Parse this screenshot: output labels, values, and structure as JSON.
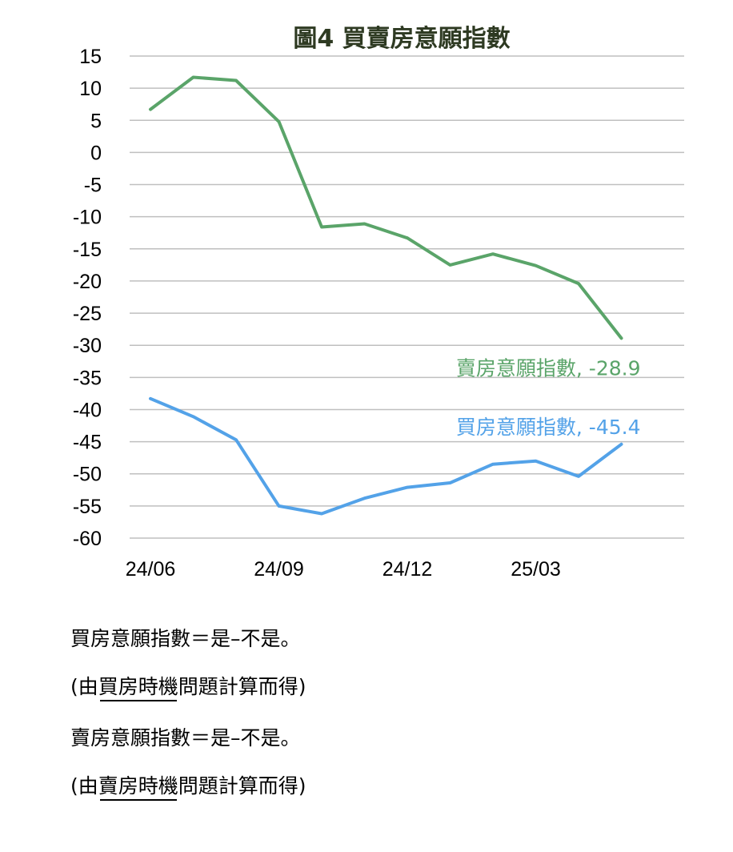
{
  "chart_data": {
    "type": "line",
    "title": "圖4  買賣房意願指數",
    "x": [
      "24/06",
      "24/07",
      "24/08",
      "24/09",
      "24/10",
      "24/11",
      "24/12",
      "25/01",
      "25/02",
      "25/03",
      "25/04",
      "25/05"
    ],
    "xticks": [
      "24/06",
      "24/09",
      "24/12",
      "25/03"
    ],
    "ylim": [
      -60,
      15
    ],
    "yticks": [
      15,
      10,
      5,
      0,
      -5,
      -10,
      -15,
      -20,
      -25,
      -30,
      -35,
      -40,
      -45,
      -50,
      -55,
      -60
    ],
    "grid": true,
    "series": [
      {
        "name": "賣房意願指數",
        "color": "#5aa469",
        "values": [
          6.7,
          11.7,
          11.2,
          4.8,
          -11.6,
          -11.1,
          -13.3,
          -17.5,
          -15.8,
          -17.6,
          -20.4,
          -28.9
        ],
        "end_label": "賣房意願指數, -28.9"
      },
      {
        "name": "買房意願指數",
        "color": "#53a2e8",
        "values": [
          -38.3,
          -41.1,
          -44.7,
          -55.0,
          -56.2,
          -53.8,
          -52.1,
          -51.4,
          -48.5,
          -48.0,
          -50.4,
          -45.4
        ],
        "end_label": "買房意願指數, -45.4"
      }
    ]
  },
  "notes": {
    "buy_formula": "買房意願指數＝是–不是。",
    "buy_source_prefix": "(由",
    "buy_source_underlined": "買房時機",
    "buy_source_suffix": "問題計算而得)",
    "sell_formula": "賣房意願指數＝是–不是。",
    "sell_source_prefix": "(由",
    "sell_source_underlined": "賣房時機",
    "sell_source_suffix": "問題計算而得)"
  }
}
